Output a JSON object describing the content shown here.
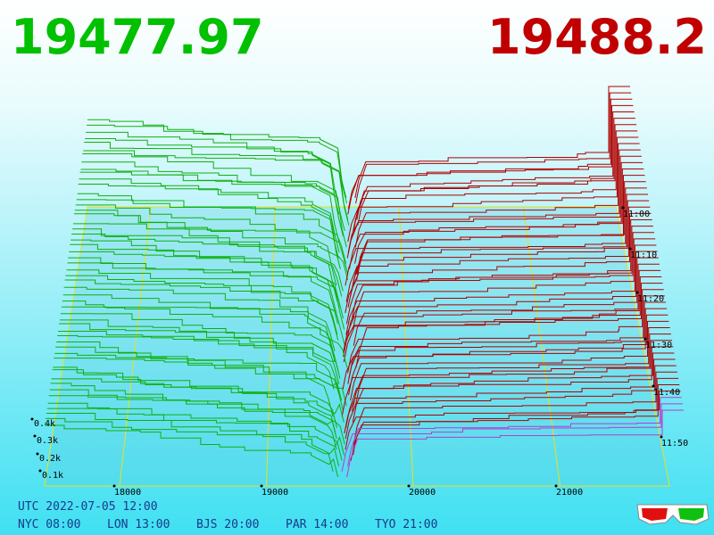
{
  "header": {
    "bid": "19477.97",
    "ask": "19488.2"
  },
  "axes": {
    "depth_labels": [
      "0.4k",
      "0.3k",
      "0.2k",
      "0.1k"
    ],
    "price_labels": [
      "18000",
      "19000",
      "20000",
      "21000"
    ],
    "time_labels": [
      "11:00",
      "11:10",
      "11:20",
      "11:30",
      "11:40",
      "11:50"
    ]
  },
  "footer": {
    "utc": "UTC 2022-07-05 12:00",
    "zones": [
      "NYC 08:00",
      "LON 13:00",
      "BJS 20:00",
      "PAR 14:00",
      "TYO 21:00"
    ]
  }
}
